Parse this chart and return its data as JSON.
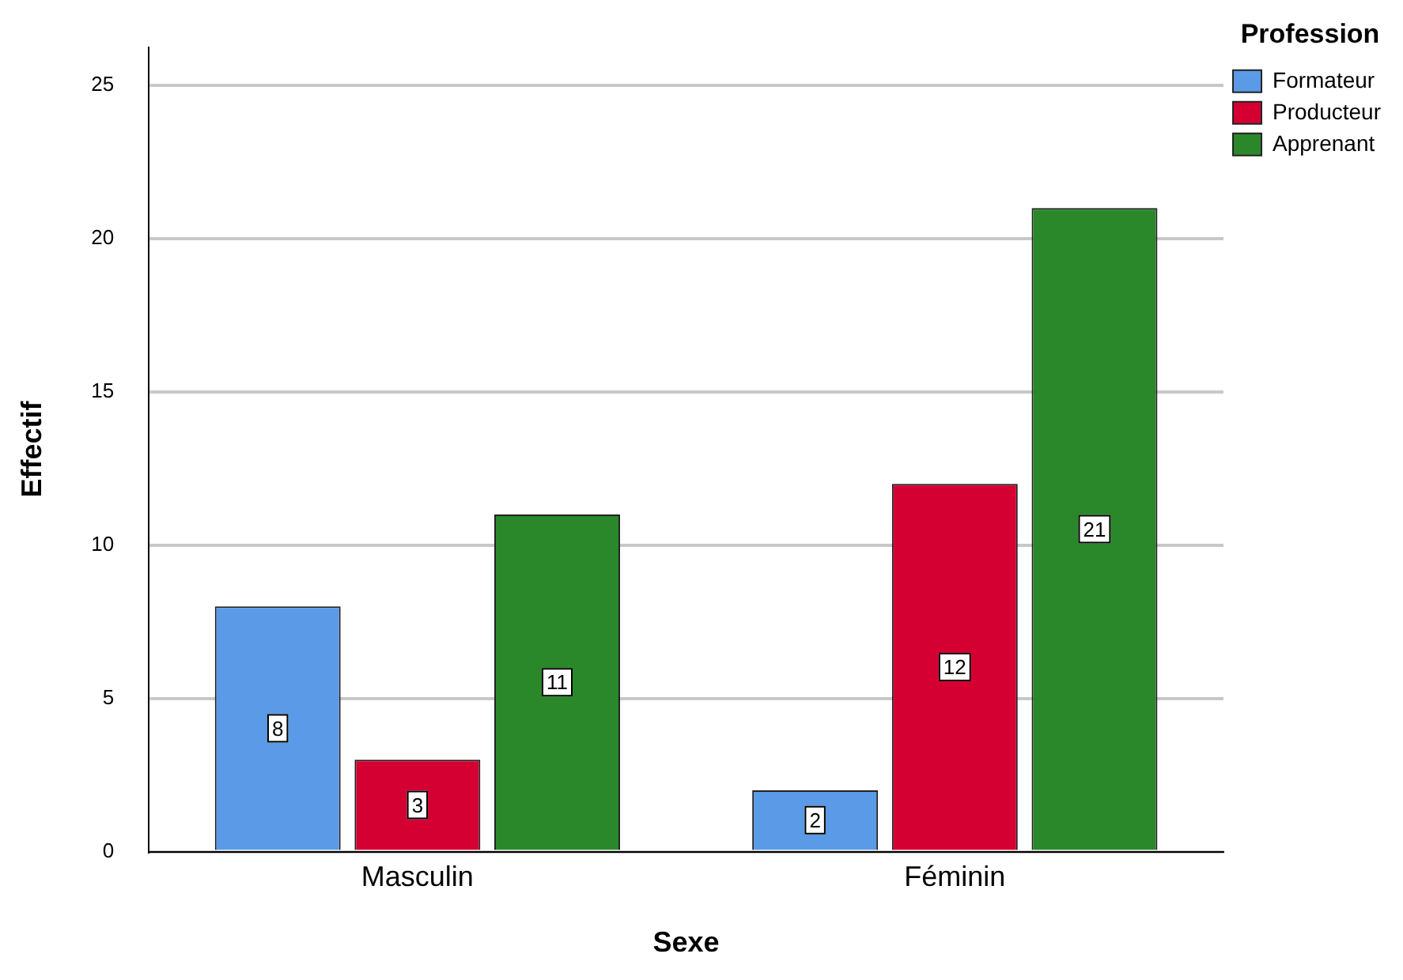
{
  "chart_data": {
    "type": "bar",
    "xlabel": "Sexe",
    "ylabel": "Effectif",
    "legend_title": "Profession",
    "categories": [
      "Masculin",
      "Féminin"
    ],
    "series": [
      {
        "name": "Formateur",
        "color": "#5b9ae6",
        "values": [
          8,
          2
        ]
      },
      {
        "name": "Producteur",
        "color": "#d50032",
        "values": [
          3,
          12
        ]
      },
      {
        "name": "Apprenant",
        "color": "#2a882a",
        "values": [
          11,
          21
        ]
      }
    ],
    "ylim": [
      0,
      26.25
    ],
    "yticks": [
      0,
      5,
      10,
      15,
      20,
      25
    ],
    "grid": "y",
    "legend": "top right",
    "data_labels": true
  }
}
